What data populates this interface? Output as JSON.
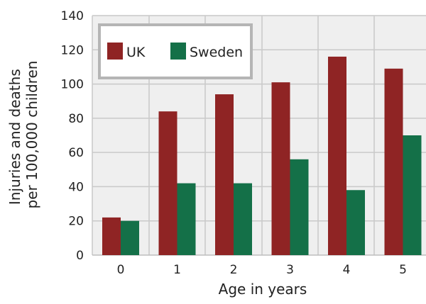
{
  "chart_data": {
    "type": "bar",
    "categories": [
      "0",
      "1",
      "2",
      "3",
      "4",
      "5"
    ],
    "series": [
      {
        "name": "UK",
        "color": "#8f2424",
        "values": [
          22,
          84,
          94,
          101,
          116,
          109
        ]
      },
      {
        "name": "Sweden",
        "color": "#147048",
        "values": [
          20,
          42,
          42,
          56,
          38,
          70
        ]
      }
    ],
    "xlabel": "Age in years",
    "ylabel_lines": [
      "Injuries and deaths",
      "per 100,000 children"
    ],
    "ylim": [
      0,
      140
    ],
    "yticks": [
      0,
      20,
      40,
      60,
      80,
      100,
      120,
      140
    ],
    "grid": true,
    "legend_position": "top-left"
  }
}
